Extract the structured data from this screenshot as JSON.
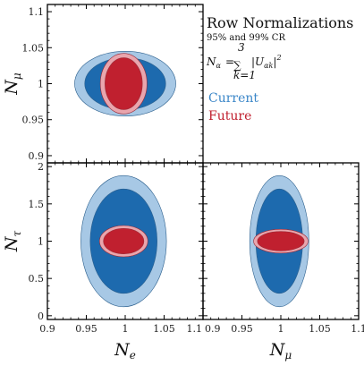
{
  "chart_data": [
    {
      "type": "contour",
      "panel": "top-left",
      "xvar": "N_e",
      "ylabel": "N",
      "ylabel_sub": "μ",
      "xlim": [
        0.9,
        1.1
      ],
      "ylim": [
        0.89,
        1.11
      ],
      "yticks": [
        "0.9",
        "0.95",
        "1",
        "1.05",
        "1.1"
      ],
      "regions": [
        {
          "series": "Current",
          "level": "99% CR",
          "cx": 1.0,
          "cy": 1.0,
          "rx": 0.065,
          "ry": 0.045,
          "color": "#a7c8e5"
        },
        {
          "series": "Current",
          "level": "95% CR",
          "cx": 1.0,
          "cy": 1.0,
          "rx": 0.052,
          "ry": 0.036,
          "color": "#1d6aae"
        },
        {
          "series": "Future",
          "level": "99% CR",
          "cx": 0.998,
          "cy": 1.0,
          "rx": 0.03,
          "ry": 0.042,
          "color": "#e9a5ad"
        },
        {
          "series": "Future",
          "level": "95% CR",
          "cx": 0.998,
          "cy": 1.0,
          "rx": 0.024,
          "ry": 0.036,
          "color": "#c0202f"
        }
      ]
    },
    {
      "type": "contour",
      "panel": "bottom-left",
      "xlabel": "N",
      "xlabel_sub": "e",
      "ylabel": "N",
      "ylabel_sub": "τ",
      "xlim": [
        0.9,
        1.1
      ],
      "ylim": [
        -0.05,
        2.05
      ],
      "xticks": [
        "0.9",
        "0.95",
        "1",
        "1.05",
        "1.1"
      ],
      "yticks": [
        "0",
        "0.5",
        "1",
        "1.5",
        "2"
      ],
      "regions": [
        {
          "series": "Current",
          "level": "99% CR",
          "cx": 0.998,
          "cy": 1.0,
          "rx": 0.055,
          "ry": 0.88,
          "color": "#a7c8e5"
        },
        {
          "series": "Current",
          "level": "95% CR",
          "cx": 0.998,
          "cy": 1.0,
          "rx": 0.043,
          "ry": 0.7,
          "color": "#1d6aae"
        },
        {
          "series": "Future",
          "level": "99% CR",
          "cx": 0.998,
          "cy": 1.0,
          "rx": 0.031,
          "ry": 0.21,
          "color": "#e9a5ad"
        },
        {
          "series": "Future",
          "level": "95% CR",
          "cx": 0.998,
          "cy": 1.0,
          "rx": 0.026,
          "ry": 0.17,
          "color": "#c0202f"
        }
      ]
    },
    {
      "type": "contour",
      "panel": "bottom-right",
      "xlabel": "N",
      "xlabel_sub": "μ",
      "yvar": "N_τ",
      "xlim": [
        0.9,
        1.1
      ],
      "ylim": [
        -0.05,
        2.05
      ],
      "xticks": [
        "0.9",
        "0.95",
        "1",
        "1.05",
        "1.1"
      ],
      "regions": [
        {
          "series": "Current",
          "level": "99% CR",
          "cx": 0.998,
          "cy": 1.0,
          "rx": 0.038,
          "ry": 0.88,
          "color": "#a7c8e5"
        },
        {
          "series": "Current",
          "level": "95% CR",
          "cx": 0.998,
          "cy": 1.0,
          "rx": 0.03,
          "ry": 0.7,
          "color": "#1d6aae"
        },
        {
          "series": "Future",
          "level": "99% CR",
          "cx": 1.0,
          "cy": 1.0,
          "rx": 0.035,
          "ry": 0.16,
          "color": "#e9a5ad"
        },
        {
          "series": "Future",
          "level": "95% CR",
          "cx": 1.0,
          "cy": 1.0,
          "rx": 0.03,
          "ry": 0.13,
          "color": "#c0202f"
        }
      ]
    }
  ],
  "legend": {
    "title": "Row Normalizations",
    "subtitle": "95% and 99% CR",
    "formula_lhs": "N",
    "formula_lhs_sub": "α",
    "formula_eq": "=",
    "formula_sum_top": "3",
    "formula_sum": "∑",
    "formula_sum_bottom": "k=1",
    "formula_term": "|U",
    "formula_term_sub": "αk",
    "formula_term_end": "|",
    "formula_power": "2",
    "entries": [
      {
        "label": "Current",
        "color": "#3a86c8"
      },
      {
        "label": "Future",
        "color": "#c0202f"
      }
    ]
  }
}
